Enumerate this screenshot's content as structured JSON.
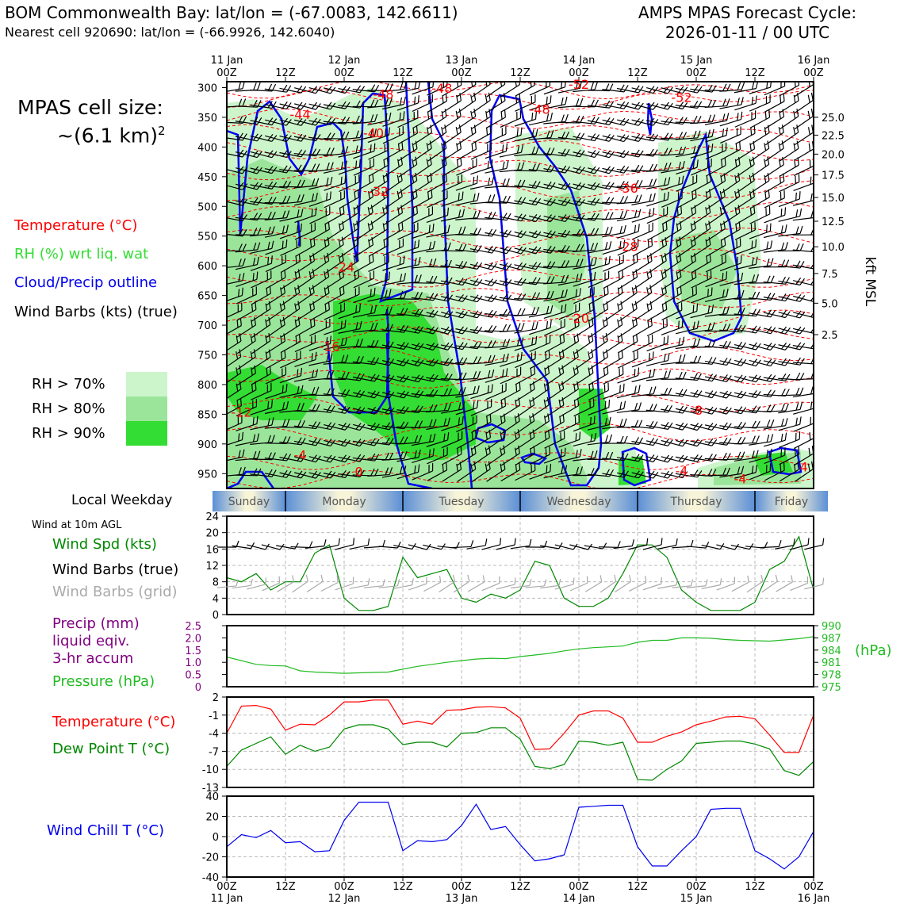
{
  "header": {
    "left_line1": "BOM Commonwealth Bay: lat/lon = (-67.0083, 142.6611)",
    "left_line2": "Nearest cell 920690: lat/lon = (-66.9926, 142.6040)",
    "right_line1": "AMPS MPAS Forecast Cycle:",
    "right_line2": "2026-01-11 / 00 UTC"
  },
  "left_legend": {
    "cell_size_label": "MPAS cell size:",
    "cell_size_value": "~(6.1 km)",
    "cell_size_exp": "2",
    "temperature": "Temperature (°C)",
    "rh": "RH (%) wrt liq. wat",
    "cloud": "Cloud/Precip outline",
    "barbs": "Wind Barbs (kts) (true)",
    "rh70": "RH > 70%",
    "rh80": "RH > 80%",
    "rh90": "RH > 90%",
    "local_weekday": "Local Weekday",
    "wind10m": "Wind at 10m AGL",
    "wind_spd": "Wind Spd (kts)",
    "wind_barbs_true": "Wind Barbs (true)",
    "wind_barbs_grid": "Wind Barbs (grid)",
    "precip1": "Precip (mm)",
    "precip2": "liquid eqiv.",
    "precip3": "3-hr accum",
    "pressure": "Pressure (hPa)",
    "temp2": "Temperature (°C)",
    "dewpoint": "Dew Point T (°C)",
    "windchill": "Wind Chill T (°C)"
  },
  "colors": {
    "temperature": "#ff0000",
    "rh_green": "#22cc22",
    "cloud_blue": "#0000ee",
    "grid_gray": "#aaaaaa",
    "wind_green": "#008800",
    "precip_purple": "#800080",
    "pressure_green": "#22bb22",
    "rh70": "#ccf5cc",
    "rh80": "#9be59b",
    "rh90": "#33dd33",
    "weekday_blue": "#5b8fd6",
    "weekday_cream": "#f8f4d8"
  },
  "time_axis": {
    "top_labels": [
      {
        "t": "11 Jan",
        "b": "00Z",
        "h": 0
      },
      {
        "t": "",
        "b": "12Z",
        "h": 12
      },
      {
        "t": "12 Jan",
        "b": "00Z",
        "h": 24
      },
      {
        "t": "",
        "b": "12Z",
        "h": 36
      },
      {
        "t": "13 Jan",
        "b": "00Z",
        "h": 48
      },
      {
        "t": "",
        "b": "12Z",
        "h": 60
      },
      {
        "t": "14 Jan",
        "b": "00Z",
        "h": 72
      },
      {
        "t": "",
        "b": "12Z",
        "h": 84
      },
      {
        "t": "15 Jan",
        "b": "00Z",
        "h": 96
      },
      {
        "t": "",
        "b": "12Z",
        "h": 108
      },
      {
        "t": "16 Jan",
        "b": "00Z",
        "h": 120
      }
    ]
  },
  "weekdays": [
    "Sunday",
    "Monday",
    "Tuesday",
    "Wednesday",
    "Thursday",
    "Friday"
  ],
  "chart_data": [
    {
      "type": "heatmap",
      "name": "cross-section",
      "x_range_hours": [
        0,
        120
      ],
      "ylabel_right": "kft MSL",
      "y_pressure_ticks": [
        300,
        350,
        400,
        450,
        500,
        550,
        600,
        650,
        700,
        750,
        800,
        850,
        900,
        950
      ],
      "y_pressure_range": [
        290,
        975
      ],
      "kft_ticks": [
        {
          "label": "25.0",
          "p": 350
        },
        {
          "label": "22.5",
          "p": 380
        },
        {
          "label": "20.0",
          "p": 412
        },
        {
          "label": "17.5",
          "p": 447
        },
        {
          "label": "15.0",
          "p": 485
        },
        {
          "label": "12.5",
          "p": 525
        },
        {
          "label": "10.0",
          "p": 568
        },
        {
          "label": "7.5",
          "p": 613
        },
        {
          "label": "5.0",
          "p": 663
        },
        {
          "label": "2.5",
          "p": 716
        }
      ],
      "temperature_labels": [
        {
          "v": "-48",
          "h": 32,
          "p": 311
        },
        {
          "v": "-48",
          "h": 44,
          "p": 301
        },
        {
          "v": "-52",
          "h": 72,
          "p": 294
        },
        {
          "v": "-52",
          "h": 93,
          "p": 316
        },
        {
          "v": "-48",
          "h": 64,
          "p": 336
        },
        {
          "v": "-44",
          "h": 15,
          "p": 345
        },
        {
          "v": "-40",
          "h": 30,
          "p": 376
        },
        {
          "v": "-36",
          "h": 82,
          "p": 469
        },
        {
          "v": "-32",
          "h": 31,
          "p": 474
        },
        {
          "v": "-28",
          "h": 82,
          "p": 567
        },
        {
          "v": "-24",
          "h": 24,
          "p": 602
        },
        {
          "v": "-20",
          "h": 72,
          "p": 688
        },
        {
          "v": "-16",
          "h": 21,
          "p": 735
        },
        {
          "v": "-12",
          "h": 3,
          "p": 846
        },
        {
          "v": "-8",
          "h": 96,
          "p": 843
        },
        {
          "v": "-4",
          "h": 15,
          "p": 918
        },
        {
          "v": "0",
          "h": 27,
          "p": 946
        },
        {
          "v": "-4",
          "h": 93,
          "p": 945
        },
        {
          "v": "-4",
          "h": 105,
          "p": 958
        },
        {
          "v": "4",
          "h": 118,
          "p": 938
        }
      ]
    },
    {
      "type": "line",
      "name": "wind speed",
      "x_hours": [
        0,
        3,
        6,
        9,
        12,
        15,
        18,
        21,
        24,
        27,
        30,
        33,
        36,
        39,
        42,
        45,
        48,
        51,
        54,
        57,
        60,
        63,
        66,
        69,
        72,
        75,
        78,
        81,
        84,
        87,
        90,
        93,
        96,
        99,
        102,
        105,
        108,
        111,
        114,
        117,
        120
      ],
      "series": [
        {
          "values": [
            9,
            8,
            10,
            6,
            8,
            8,
            15,
            17,
            4,
            1,
            1,
            2,
            14,
            9,
            10,
            11,
            4,
            3,
            5,
            4,
            6,
            13,
            12,
            4,
            2,
            2,
            4,
            10,
            17,
            17,
            14,
            6,
            3,
            1,
            1,
            1,
            3,
            11,
            13,
            19,
            6
          ]
        }
      ],
      "ylim": [
        0,
        24
      ],
      "yticks": [
        0,
        4,
        8,
        12,
        16,
        20,
        24
      ]
    },
    {
      "type": "line",
      "name": "pressure",
      "x_hours": [
        0,
        6,
        9,
        12,
        15,
        18,
        24,
        27,
        30,
        33,
        36,
        39,
        42,
        45,
        48,
        51,
        54,
        57,
        60,
        63,
        66,
        69,
        72,
        75,
        78,
        81,
        84,
        87,
        90,
        93,
        96,
        99,
        102,
        105,
        108,
        111,
        114,
        117,
        120
      ],
      "series": [
        {
          "values": [
            982.3,
            980.5,
            980.2,
            980.1,
            978.9,
            978.6,
            978.3,
            978.4,
            978.5,
            978.6,
            979.3,
            980.0,
            980.5,
            981.0,
            981.4,
            981.8,
            982.0,
            981.9,
            982.4,
            982.8,
            983.2,
            983.8,
            984.3,
            984.6,
            984.8,
            985.0,
            985.9,
            986.4,
            986.4,
            987.0,
            987.0,
            986.9,
            986.6,
            986.4,
            986.3,
            986.2,
            986.5,
            986.8,
            987.3
          ]
        }
      ],
      "ylim_right": [
        975,
        990
      ],
      "yticks_right": [
        975,
        978,
        981,
        984,
        987,
        990
      ],
      "yticks_left": [
        "0",
        "0.5",
        "1.0",
        "1.5",
        "2.0",
        "2.5"
      ],
      "ylabel_right": "(hPa)"
    },
    {
      "type": "line",
      "name": "temperature and dew point",
      "x_hours": [
        0,
        3,
        6,
        9,
        12,
        15,
        18,
        21,
        24,
        27,
        30,
        33,
        36,
        39,
        42,
        45,
        48,
        51,
        54,
        57,
        60,
        63,
        66,
        69,
        72,
        75,
        78,
        81,
        84,
        87,
        90,
        93,
        96,
        99,
        102,
        105,
        108,
        111,
        114,
        117,
        120
      ],
      "series": [
        {
          "values": [
            -4,
            0.5,
            0.6,
            0,
            -3.5,
            -2.5,
            -2.6,
            -1,
            1.2,
            1.2,
            1.5,
            1.5,
            -2.5,
            -2,
            -2.5,
            -0.2,
            -0.1,
            0.3,
            0.4,
            0.2,
            -1.5,
            -6.7,
            -6.6,
            -4,
            -1,
            -0.3,
            -0.3,
            -1.5,
            -5.5,
            -5.5,
            -4.5,
            -3.8,
            -2.6,
            -2,
            -1.3,
            -1.2,
            -1.6,
            -4.3,
            -7.2,
            -7.2,
            -1
          ]
        },
        {
          "values": [
            -9.5,
            -6.8,
            -5.7,
            -4.6,
            -7.5,
            -6,
            -7,
            -6.3,
            -3.3,
            -2.6,
            -2.6,
            -3.3,
            -5.9,
            -5.5,
            -5.5,
            -6.3,
            -4,
            -3.9,
            -3.1,
            -3.1,
            -5,
            -9.5,
            -9.9,
            -9.2,
            -5.3,
            -5.5,
            -6,
            -5.5,
            -11.7,
            -11.8,
            -10,
            -8.6,
            -5.7,
            -5.5,
            -5.3,
            -5.3,
            -5.8,
            -6.6,
            -10.2,
            -11,
            -8.7
          ]
        }
      ],
      "ylim": [
        -13,
        2
      ],
      "yticks": [
        2,
        -1,
        -4,
        -7,
        -10,
        -13
      ]
    },
    {
      "type": "line",
      "name": "wind chill",
      "x_hours": [
        0,
        3,
        6,
        9,
        12,
        15,
        18,
        21,
        24,
        27,
        30,
        33,
        36,
        39,
        42,
        45,
        48,
        51,
        54,
        57,
        60,
        63,
        66,
        69,
        72,
        75,
        78,
        81,
        84,
        87,
        90,
        93,
        96,
        99,
        102,
        105,
        108,
        111,
        114,
        117,
        120
      ],
      "series": [
        {
          "values": [
            -10,
            2,
            -1,
            6,
            -6,
            -5,
            -15,
            -14,
            16,
            34,
            34,
            34,
            -14,
            -4,
            -5,
            -3,
            11,
            32,
            7,
            10,
            -8,
            -24,
            -22,
            -18,
            29,
            30,
            31,
            31,
            -10,
            -29,
            -29,
            -14,
            0,
            27,
            28,
            28,
            -14,
            -22,
            -32,
            -20,
            5
          ]
        }
      ],
      "ylim": [
        -40,
        40
      ],
      "yticks": [
        40,
        20,
        0,
        -20,
        -40
      ]
    }
  ],
  "bottom_axis": {
    "labels": [
      {
        "b": "00Z",
        "t": "11 Jan",
        "h": 0
      },
      {
        "b": "12Z",
        "t": "",
        "h": 12
      },
      {
        "b": "00Z",
        "t": "12 Jan",
        "h": 24
      },
      {
        "b": "12Z",
        "t": "",
        "h": 36
      },
      {
        "b": "00Z",
        "t": "13 Jan",
        "h": 48
      },
      {
        "b": "12Z",
        "t": "",
        "h": 60
      },
      {
        "b": "00Z",
        "t": "14 Jan",
        "h": 72
      },
      {
        "b": "12Z",
        "t": "",
        "h": 84
      },
      {
        "b": "00Z",
        "t": "15 Jan",
        "h": 96
      },
      {
        "b": "12Z",
        "t": "",
        "h": 108
      },
      {
        "b": "00Z",
        "t": "16 Jan",
        "h": 120
      }
    ]
  }
}
